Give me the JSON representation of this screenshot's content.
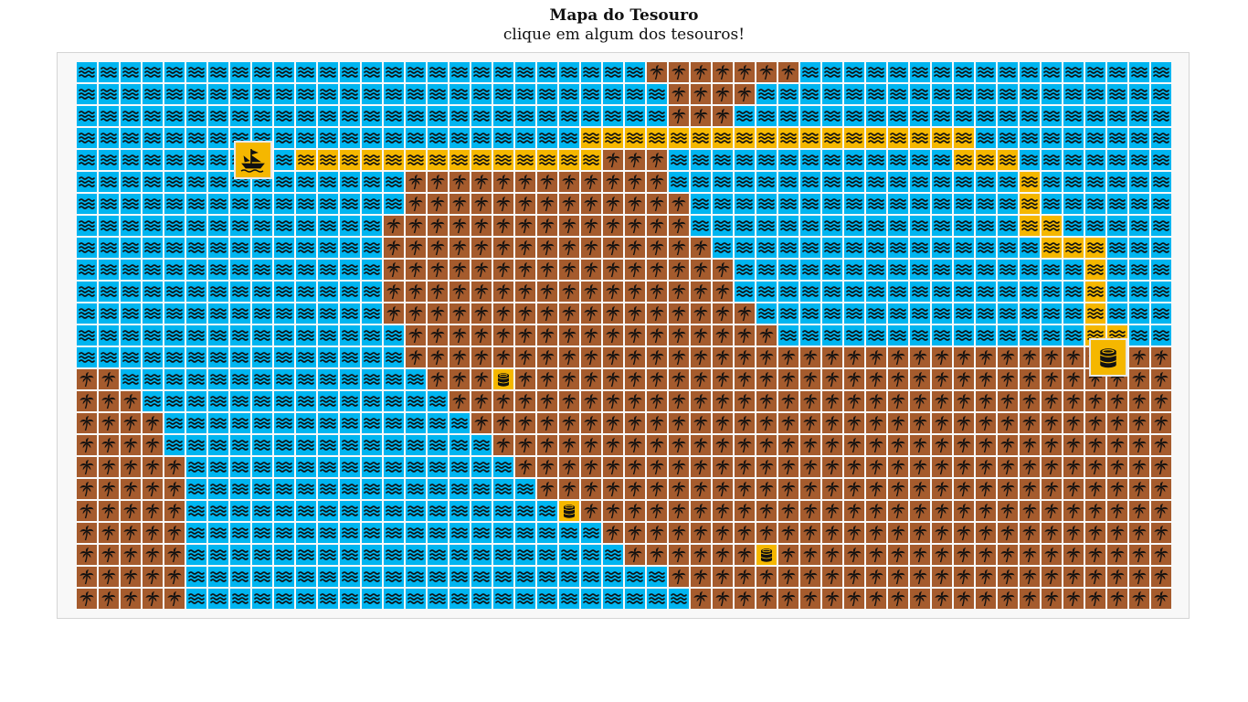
{
  "header": {
    "title": "Mapa do Tesouro",
    "subtitle": "clique em algum dos tesouros!"
  },
  "map": {
    "cols": 50,
    "rows": 25,
    "colors": {
      "water": "#00b5f0",
      "land": "#a55b2d",
      "path": "#f5b700",
      "frame_bg": "#f8f8f8",
      "icon": "#111111"
    },
    "icons": {
      "water": "waves-icon",
      "land": "palm-tree-icon",
      "path": "waves-icon",
      "treasure": "coin-stack-icon",
      "boat": "ship-icon"
    },
    "land_runs": [
      [
        [
          26,
          32
        ]
      ],
      [
        [
          27,
          30
        ]
      ],
      [
        [
          27,
          29
        ]
      ],
      [],
      [
        [
          24,
          26
        ]
      ],
      [
        [
          15,
          26
        ]
      ],
      [
        [
          15,
          27
        ]
      ],
      [
        [
          14,
          27
        ]
      ],
      [
        [
          14,
          28
        ]
      ],
      [
        [
          14,
          29
        ]
      ],
      [
        [
          14,
          29
        ]
      ],
      [
        [
          14,
          30
        ]
      ],
      [
        [
          15,
          31
        ]
      ],
      [
        [
          15,
          49
        ]
      ],
      [
        [
          0,
          1
        ],
        [
          16,
          49
        ]
      ],
      [
        [
          0,
          2
        ],
        [
          17,
          49
        ]
      ],
      [
        [
          0,
          3
        ],
        [
          18,
          49
        ]
      ],
      [
        [
          0,
          3
        ],
        [
          19,
          49
        ]
      ],
      [
        [
          0,
          4
        ],
        [
          20,
          49
        ]
      ],
      [
        [
          0,
          4
        ],
        [
          21,
          49
        ]
      ],
      [
        [
          0,
          4
        ],
        [
          22,
          49
        ]
      ],
      [
        [
          0,
          4
        ],
        [
          24,
          49
        ]
      ],
      [
        [
          0,
          4
        ],
        [
          25,
          49
        ]
      ],
      [
        [
          0,
          4
        ],
        [
          27,
          49
        ]
      ],
      [
        [
          0,
          4
        ],
        [
          28,
          49
        ]
      ]
    ],
    "path_cells": [
      [
        3,
        23
      ],
      [
        3,
        24
      ],
      [
        3,
        25
      ],
      [
        3,
        26
      ],
      [
        3,
        27
      ],
      [
        3,
        28
      ],
      [
        3,
        29
      ],
      [
        3,
        30
      ],
      [
        3,
        31
      ],
      [
        3,
        32
      ],
      [
        3,
        33
      ],
      [
        3,
        34
      ],
      [
        3,
        35
      ],
      [
        3,
        36
      ],
      [
        3,
        37
      ],
      [
        3,
        38
      ],
      [
        3,
        39
      ],
      [
        3,
        40
      ],
      [
        4,
        10
      ],
      [
        4,
        11
      ],
      [
        4,
        12
      ],
      [
        4,
        13
      ],
      [
        4,
        14
      ],
      [
        4,
        15
      ],
      [
        4,
        16
      ],
      [
        4,
        17
      ],
      [
        4,
        18
      ],
      [
        4,
        19
      ],
      [
        4,
        20
      ],
      [
        4,
        21
      ],
      [
        4,
        22
      ],
      [
        4,
        23
      ],
      [
        4,
        40
      ],
      [
        4,
        41
      ],
      [
        4,
        42
      ],
      [
        5,
        43
      ],
      [
        6,
        43
      ],
      [
        7,
        43
      ],
      [
        7,
        44
      ],
      [
        8,
        44
      ],
      [
        8,
        45
      ],
      [
        8,
        46
      ],
      [
        9,
        46
      ],
      [
        10,
        46
      ],
      [
        11,
        46
      ],
      [
        12,
        46
      ],
      [
        12,
        47
      ]
    ],
    "treasures": [
      [
        14,
        19
      ],
      [
        20,
        22
      ],
      [
        22,
        31
      ]
    ],
    "boat": {
      "row": 4,
      "col": 7.6
    },
    "big_treasure": {
      "row": 13,
      "col": 46.6
    }
  }
}
